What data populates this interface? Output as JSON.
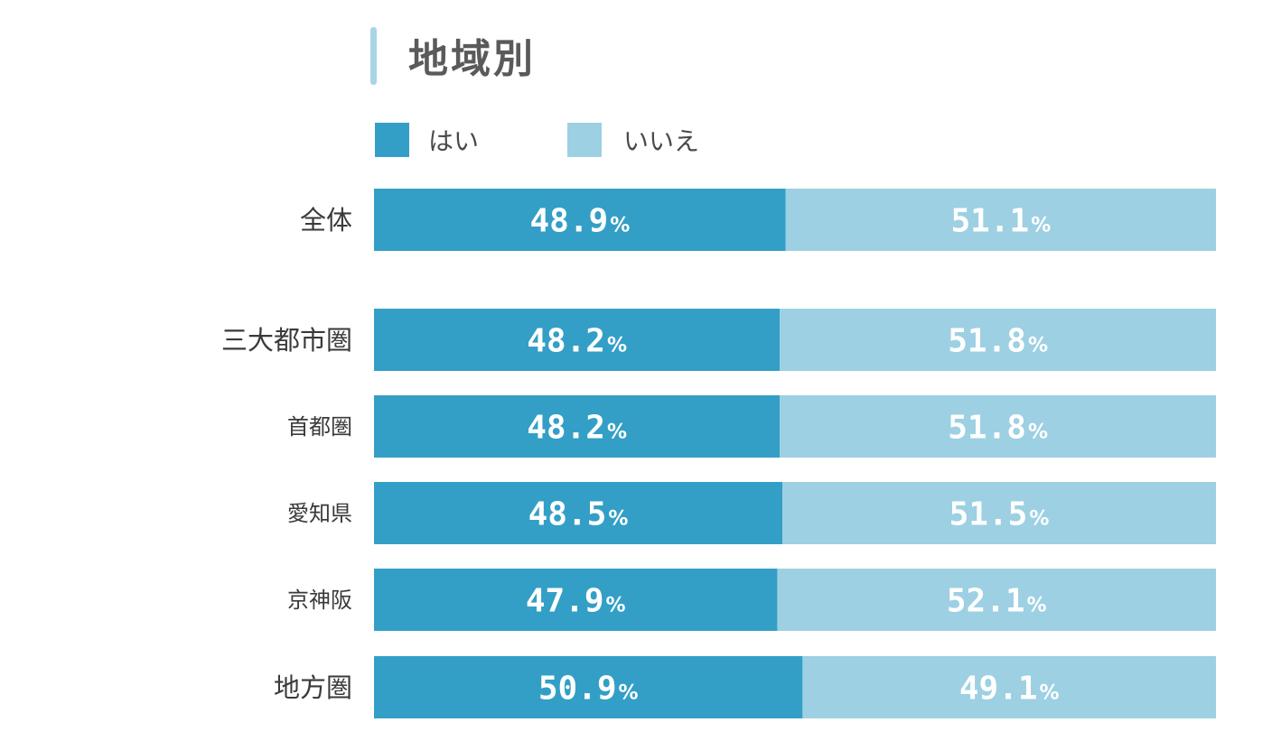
{
  "chart_data": {
    "type": "bar",
    "orientation": "horizontal-stacked-100",
    "title": "地域別",
    "categories": [
      "全体",
      "三大都市圏",
      "首都圏",
      "愛知県",
      "京神阪",
      "地方圏"
    ],
    "series": [
      {
        "name": "はい",
        "values": [
          48.9,
          48.2,
          48.2,
          48.5,
          47.9,
          50.9
        ]
      },
      {
        "name": "いいえ",
        "values": [
          51.1,
          51.8,
          51.8,
          51.5,
          52.1,
          49.1
        ]
      }
    ],
    "value_suffix": "%",
    "xlim": [
      0,
      100
    ],
    "grid": false,
    "legend": "top-left"
  },
  "colors": {
    "yes": "#339fc6",
    "no": "#9dd0e3",
    "title_accent": "#a8d6e6"
  }
}
